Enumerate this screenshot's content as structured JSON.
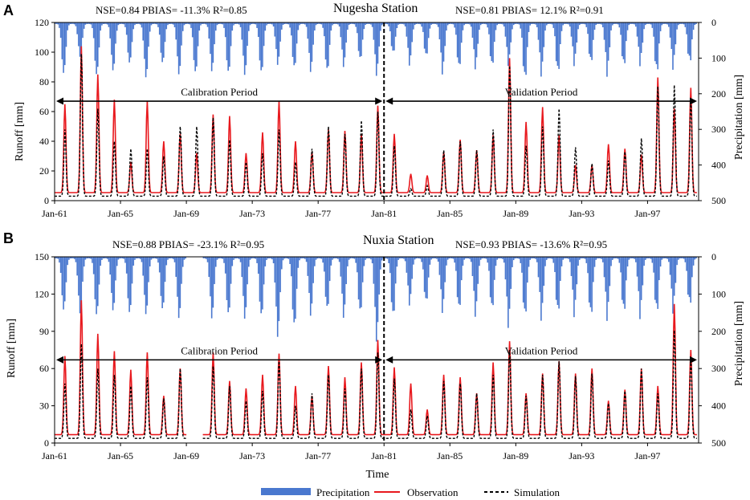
{
  "colors": {
    "precipitation": "#4a78cf",
    "observation": "#e8191e",
    "simulation": "#000000",
    "axis": "#000000"
  },
  "legend": [
    {
      "key": "precipitation",
      "label": "Precipitation",
      "style": "bar"
    },
    {
      "key": "observation",
      "label": "Observation",
      "style": "solid"
    },
    {
      "key": "simulation",
      "label": "Simulation",
      "style": "dashed"
    }
  ],
  "x_title": "Time",
  "chart_data": [
    {
      "panel": "A",
      "type": "line",
      "title": "Nugesha Station",
      "calibration_stats": "NSE=0.84 PBIAS= -11.3% R²=0.85",
      "validation_stats": "NSE=0.81 PBIAS= 12.1% R²=0.91",
      "ylabel": "Runoff [mm]",
      "y2label": "Precipitation [mm]",
      "ylim": [
        0,
        120
      ],
      "yticks": [
        0,
        20,
        40,
        60,
        80,
        100,
        120
      ],
      "y2lim": [
        500,
        0
      ],
      "y2ticks": [
        0,
        100,
        200,
        300,
        400,
        500
      ],
      "xlim": [
        1961.0,
        2000.1
      ],
      "xticks": [
        "Jan-61",
        "Jan-65",
        "Jan-69",
        "Jan-73",
        "Jan-77",
        "Jan-81",
        "Jan-85",
        "Jan-89",
        "Jan-93",
        "Jan-97"
      ],
      "split_year": 1981.0,
      "calibration_label": "Calibration Period",
      "validation_label": "Validation Period",
      "period_arrow_y": 67,
      "annual_peaks": {
        "years": [
          1961,
          1962,
          1963,
          1964,
          1965,
          1966,
          1967,
          1968,
          1969,
          1970,
          1971,
          1972,
          1973,
          1974,
          1975,
          1976,
          1977,
          1978,
          1979,
          1980,
          1981,
          1982,
          1983,
          1984,
          1985,
          1986,
          1987,
          1988,
          1989,
          1990,
          1991,
          1992,
          1993,
          1994,
          1995,
          1996,
          1997,
          1998,
          1999
        ],
        "observation": [
          65,
          104,
          85,
          68,
          26,
          67,
          40,
          45,
          32,
          58,
          57,
          32,
          46,
          67,
          40,
          33,
          48,
          47,
          45,
          64,
          45,
          18,
          17,
          33,
          41,
          34,
          44,
          96,
          53,
          63,
          44,
          24,
          24,
          38,
          35,
          31,
          83,
          62,
          76
        ],
        "simulation": [
          48,
          99,
          62,
          40,
          35,
          35,
          30,
          50,
          50,
          56,
          41,
          26,
          32,
          48,
          26,
          35,
          50,
          45,
          54,
          60,
          37,
          8,
          10,
          34,
          40,
          34,
          48,
          91,
          37,
          50,
          62,
          36,
          25,
          27,
          33,
          42,
          77,
          78,
          69
        ],
        "precipitation": [
          150,
          100,
          155,
          140,
          120,
          160,
          120,
          150,
          150,
          140,
          150,
          150,
          150,
          120,
          135,
          140,
          145,
          125,
          110,
          150,
          90,
          120,
          100,
          145,
          135,
          130,
          130,
          120,
          170,
          150,
          150,
          120,
          120,
          150,
          130,
          120,
          150,
          130,
          120
        ]
      }
    },
    {
      "panel": "B",
      "type": "line",
      "title": "Nuxia Station",
      "calibration_stats": "NSE=0.88 PBIAS= -23.1% R²=0.95",
      "validation_stats": "NSE=0.93 PBIAS= -13.6% R²=0.95",
      "ylabel": "Runoff [mm]",
      "y2label": "Precipitation [mm]",
      "ylim": [
        0,
        150
      ],
      "yticks": [
        0,
        30,
        60,
        90,
        120,
        150
      ],
      "y2lim": [
        500,
        0
      ],
      "y2ticks": [
        0,
        100,
        200,
        300,
        400,
        500
      ],
      "xlim": [
        1961.0,
        2000.1
      ],
      "xticks": [
        "Jan-61",
        "Jan-65",
        "Jan-69",
        "Jan-73",
        "Jan-77",
        "Jan-81",
        "Jan-85",
        "Jan-89",
        "Jan-93",
        "Jan-97"
      ],
      "split_year": 1981.0,
      "calibration_label": "Calibration Period",
      "validation_label": "Validation Period",
      "period_arrow_y": 67,
      "gap_years": [
        1969
      ],
      "annual_peaks": {
        "years": [
          1961,
          1962,
          1963,
          1964,
          1965,
          1966,
          1967,
          1968,
          1969,
          1970,
          1971,
          1972,
          1973,
          1974,
          1975,
          1976,
          1977,
          1978,
          1979,
          1980,
          1981,
          1982,
          1983,
          1984,
          1985,
          1986,
          1987,
          1988,
          1989,
          1990,
          1991,
          1992,
          1993,
          1994,
          1995,
          1996,
          1997,
          1998,
          1999
        ],
        "observation": [
          70,
          115,
          88,
          74,
          59,
          73,
          38,
          60,
          0,
          73,
          50,
          44,
          55,
          72,
          46,
          38,
          62,
          53,
          65,
          83,
          61,
          48,
          27,
          55,
          53,
          40,
          65,
          82,
          40,
          56,
          66,
          56,
          60,
          34,
          43,
          60,
          46,
          112,
          75
        ],
        "simulation": [
          48,
          80,
          60,
          55,
          46,
          53,
          36,
          60,
          0,
          62,
          46,
          34,
          42,
          66,
          30,
          40,
          55,
          44,
          60,
          73,
          52,
          27,
          22,
          50,
          48,
          40,
          55,
          75,
          38,
          55,
          66,
          54,
          56,
          32,
          42,
          60,
          40,
          91,
          68
        ],
        "precipitation": [
          150,
          160,
          165,
          150,
          160,
          160,
          150,
          170,
          0,
          170,
          165,
          170,
          170,
          220,
          200,
          160,
          150,
          165,
          160,
          230,
          170,
          130,
          130,
          150,
          150,
          160,
          150,
          190,
          170,
          170,
          160,
          160,
          170,
          170,
          160,
          165,
          160,
          150,
          140
        ]
      }
    }
  ]
}
